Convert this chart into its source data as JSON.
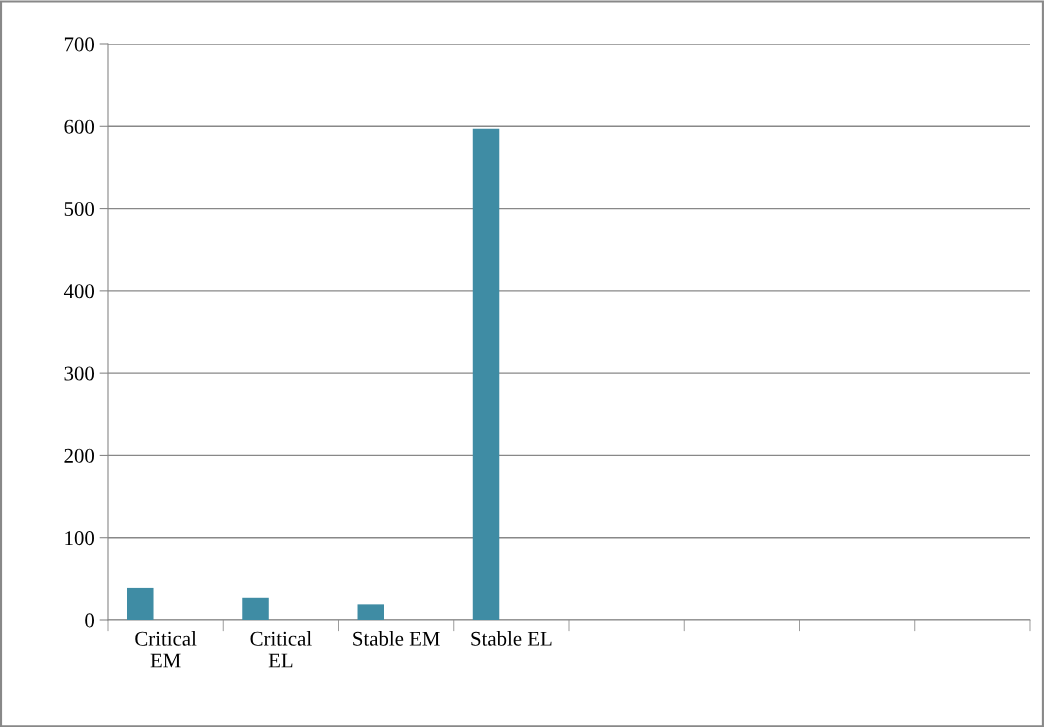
{
  "chart_data": {
    "type": "bar",
    "categories": [
      "Critical\nEM",
      "Critical\nEL",
      "Stable EM",
      "Stable EL",
      null,
      null,
      null,
      null
    ],
    "values": [
      39,
      27,
      19,
      597,
      null,
      null,
      null,
      null
    ],
    "color": "#3f8ca4",
    "ylim": [
      0,
      700
    ],
    "yticks": [
      0,
      100,
      200,
      300,
      400,
      500,
      600,
      700
    ],
    "grid": "y",
    "legend": false
  }
}
